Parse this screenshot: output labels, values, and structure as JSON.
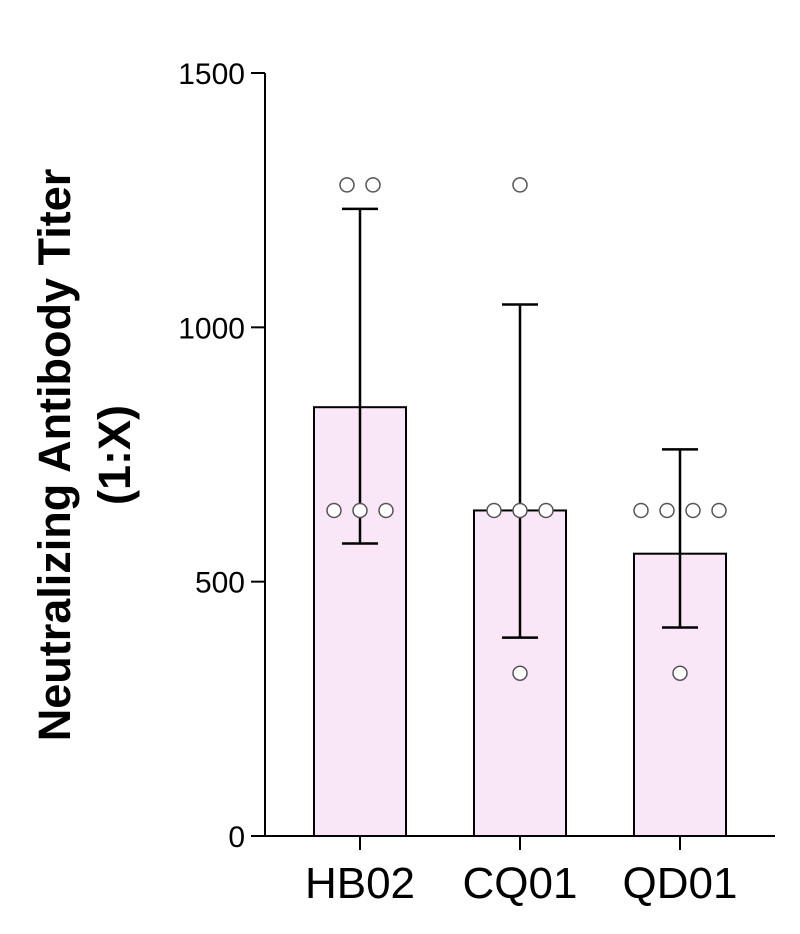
{
  "chart_data": {
    "type": "bar",
    "title": "",
    "xlabel": "",
    "ylabel_lines": [
      "Neutralizing Antibody Titer",
      "(1:X)"
    ],
    "categories": [
      "HB02",
      "CQ01",
      "QD01"
    ],
    "values": [
      843,
      640,
      555
    ],
    "error_upper": [
      1233,
      1045,
      760
    ],
    "error_lower": [
      575,
      390,
      410
    ],
    "points": [
      [
        1280,
        1280,
        640,
        640,
        640
      ],
      [
        1280,
        640,
        640,
        640,
        320
      ],
      [
        640,
        640,
        640,
        640,
        320
      ]
    ],
    "ylim": [
      0,
      1500
    ],
    "yticks": [
      0,
      500,
      1000,
      1500
    ],
    "grid": false,
    "colors": {
      "bar_fill": "#f9e6f7",
      "bar_stroke": "#000000",
      "point_stroke": "#555555"
    }
  }
}
